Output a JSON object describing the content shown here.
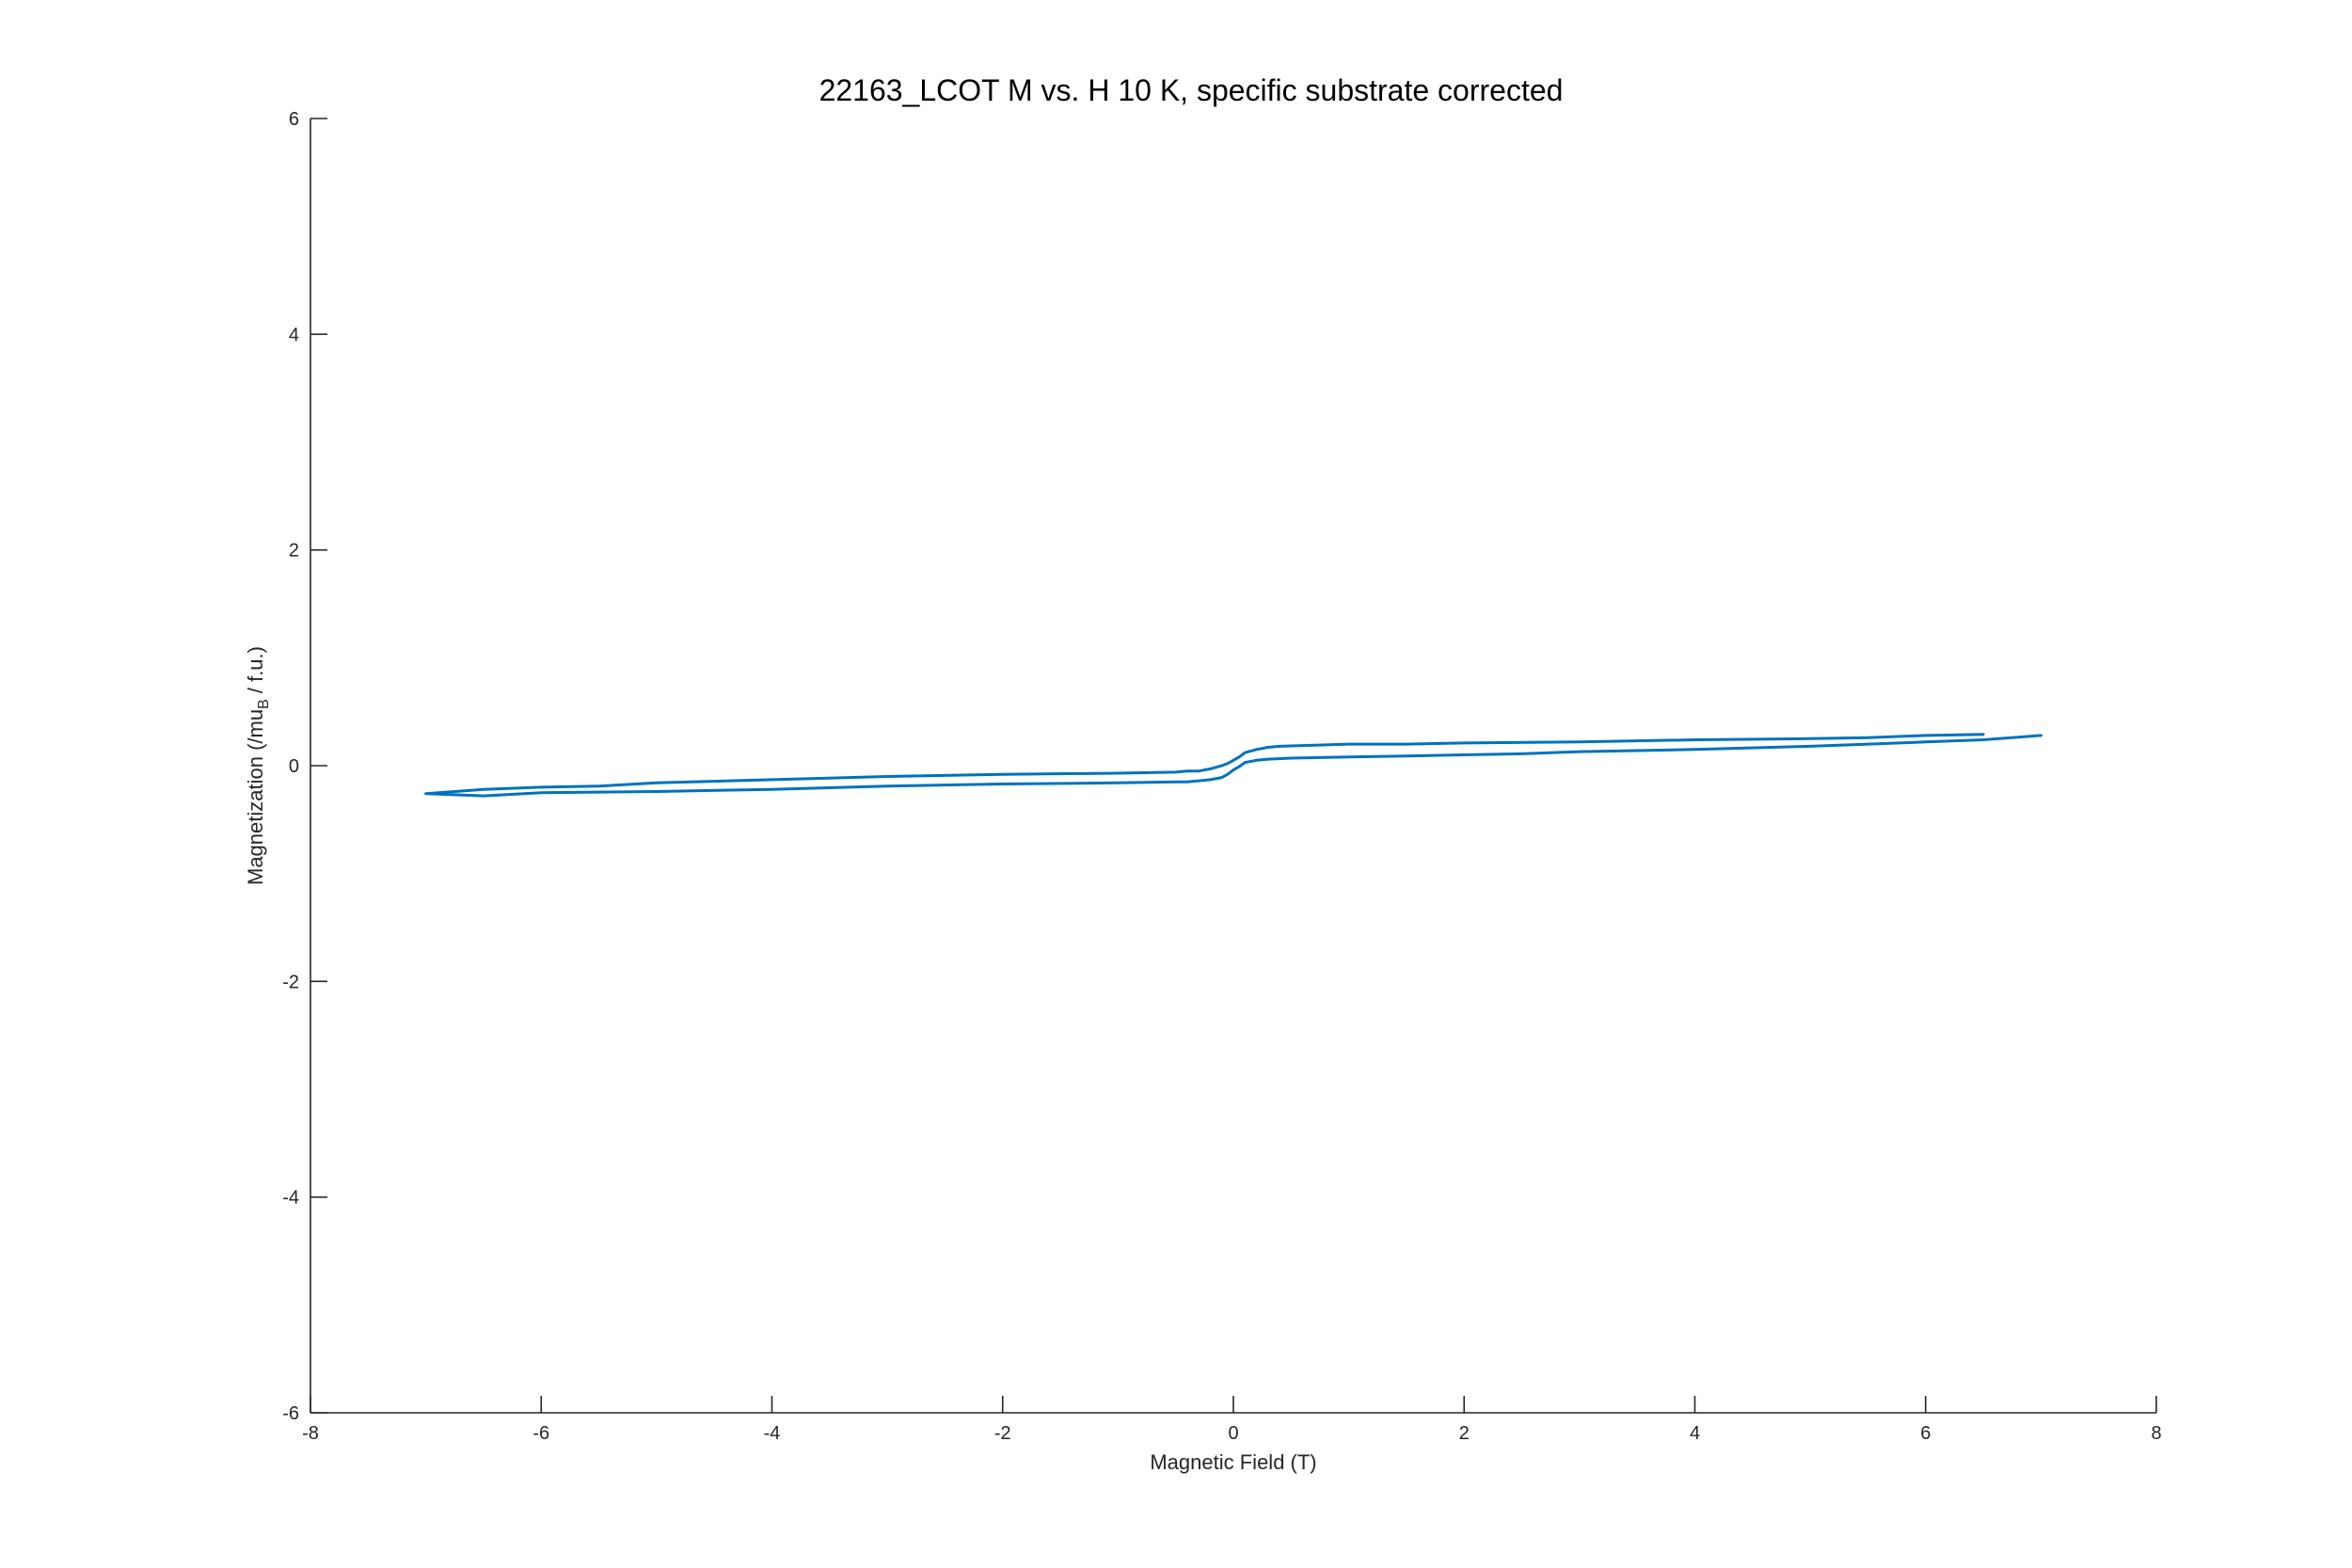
{
  "chart_data": {
    "type": "line",
    "title": "22163_LCOT M vs. H 10 K, specific substrate corrected",
    "xlabel": "Magnetic Field (T)",
    "ylabel": {
      "main": "Magnetization (/mu",
      "subscript": "B",
      "tail": " / f.u.)"
    },
    "xlim": [
      -8,
      8
    ],
    "ylim": [
      -6,
      6
    ],
    "xticks": [
      -8,
      -6,
      -4,
      -2,
      0,
      2,
      4,
      6,
      8
    ],
    "yticks": [
      -6,
      -4,
      -2,
      0,
      2,
      4,
      6
    ],
    "grid": false,
    "box": false,
    "color": "#0072BD",
    "series": [
      {
        "x": [
          6.5,
          6.0,
          5.5,
          5.0,
          4.0,
          3.0,
          2.0,
          1.5,
          1.0,
          0.7,
          0.4,
          0.3,
          0.2,
          0.1,
          0.05,
          0.0,
          -0.05,
          -0.1,
          -0.2,
          -0.3,
          -0.4,
          -0.5,
          -1.0,
          -2.0,
          -3.0,
          -4.0,
          -5.0,
          -5.5,
          -6.0,
          -6.5,
          -7.0,
          -6.5,
          -6.0,
          -5.0,
          -4.0,
          -3.0,
          -2.0,
          -1.0,
          -0.5,
          -0.4,
          -0.3,
          -0.2,
          -0.1,
          -0.05,
          0.0,
          0.05,
          0.1,
          0.2,
          0.3,
          0.5,
          1.0,
          1.5,
          2.0,
          2.5,
          3.0,
          4.0,
          5.0,
          5.5,
          6.0,
          6.5,
          7.0
        ],
        "y": [
          0.29,
          0.28,
          0.26,
          0.25,
          0.24,
          0.22,
          0.21,
          0.2,
          0.2,
          0.19,
          0.18,
          0.17,
          0.15,
          0.12,
          0.08,
          0.05,
          0.02,
          0.0,
          -0.03,
          -0.05,
          -0.05,
          -0.06,
          -0.07,
          -0.08,
          -0.1,
          -0.13,
          -0.16,
          -0.19,
          -0.2,
          -0.22,
          -0.26,
          -0.28,
          -0.25,
          -0.24,
          -0.22,
          -0.19,
          -0.17,
          -0.16,
          -0.15,
          -0.15,
          -0.14,
          -0.13,
          -0.11,
          -0.08,
          -0.04,
          -0.01,
          0.03,
          0.05,
          0.06,
          0.07,
          0.08,
          0.09,
          0.1,
          0.11,
          0.13,
          0.15,
          0.18,
          0.2,
          0.22,
          0.24,
          0.28
        ]
      }
    ]
  }
}
